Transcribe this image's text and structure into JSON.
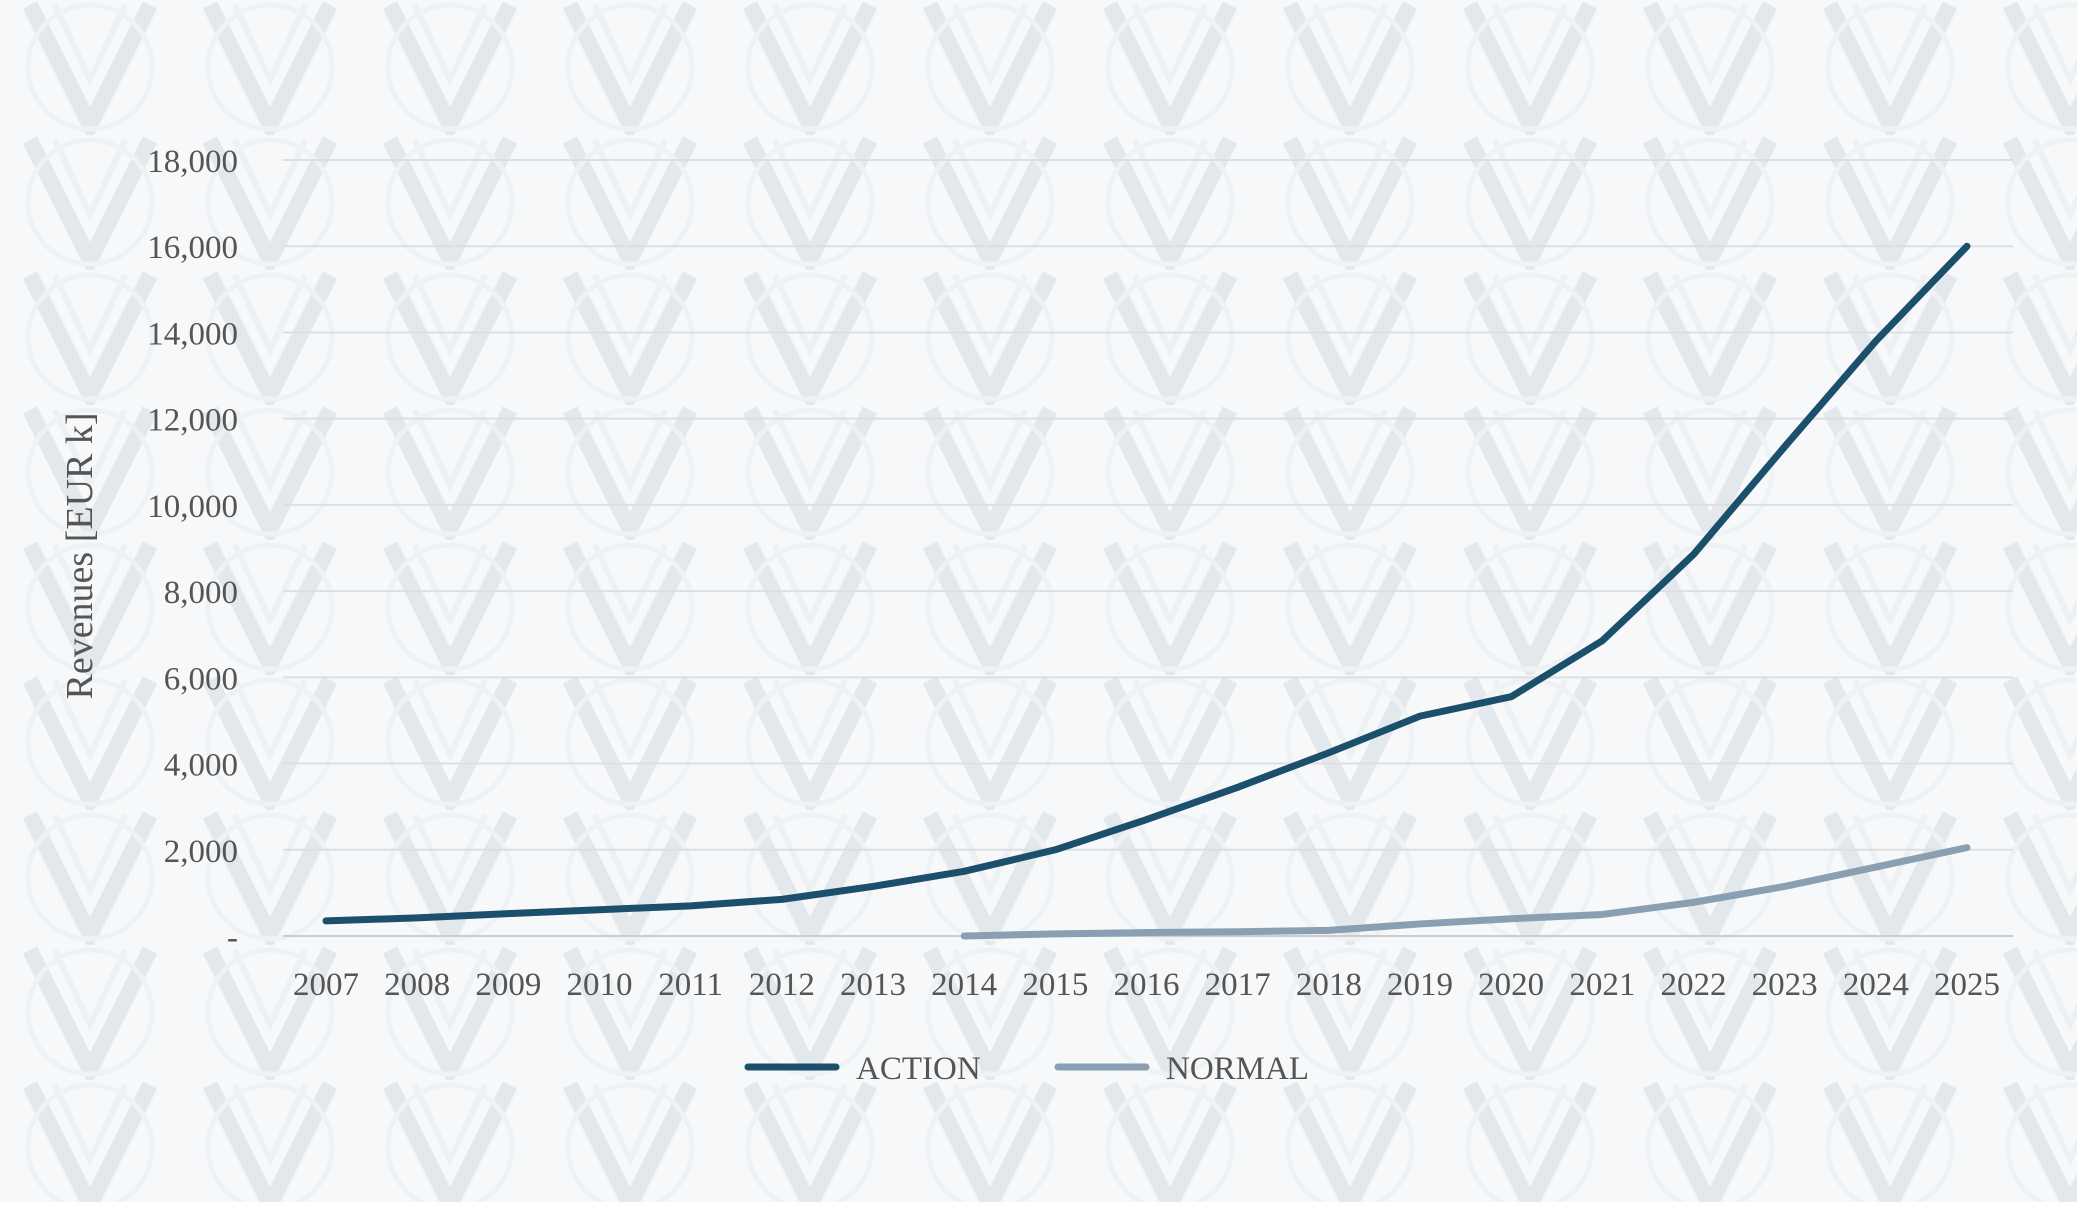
{
  "chart_data": {
    "type": "line",
    "title": "",
    "xlabel": "",
    "ylabel": "Revenues [EUR k]",
    "categories": [
      "2007",
      "2008",
      "2009",
      "2010",
      "2011",
      "2012",
      "2013",
      "2014",
      "2015",
      "2016",
      "2017",
      "2018",
      "2019",
      "2020",
      "2021",
      "2022",
      "2023",
      "2024",
      "2025"
    ],
    "y_ticks": [
      {
        "value": 0,
        "label": "-"
      },
      {
        "value": 2000,
        "label": "2,000"
      },
      {
        "value": 4000,
        "label": "4,000"
      },
      {
        "value": 6000,
        "label": "6,000"
      },
      {
        "value": 8000,
        "label": "8,000"
      },
      {
        "value": 10000,
        "label": "10,000"
      },
      {
        "value": 12000,
        "label": "12,000"
      },
      {
        "value": 14000,
        "label": "14,000"
      },
      {
        "value": 16000,
        "label": "16,000"
      },
      {
        "value": 18000,
        "label": "18,000"
      }
    ],
    "ylim": [
      0,
      18000
    ],
    "grid": true,
    "legend_position": "bottom",
    "series": [
      {
        "name": "ACTION",
        "color": "#1b4f6b",
        "values": [
          350,
          420,
          520,
          610,
          700,
          850,
          1150,
          1500,
          2000,
          2700,
          3450,
          4250,
          5100,
          5550,
          6850,
          8850,
          11350,
          13800,
          16000
        ]
      },
      {
        "name": "NORMAL",
        "color": "#8a9fb1",
        "values": [
          null,
          null,
          null,
          null,
          null,
          null,
          null,
          0,
          50,
          80,
          100,
          130,
          280,
          400,
          500,
          780,
          1150,
          1600,
          2050
        ]
      }
    ]
  }
}
